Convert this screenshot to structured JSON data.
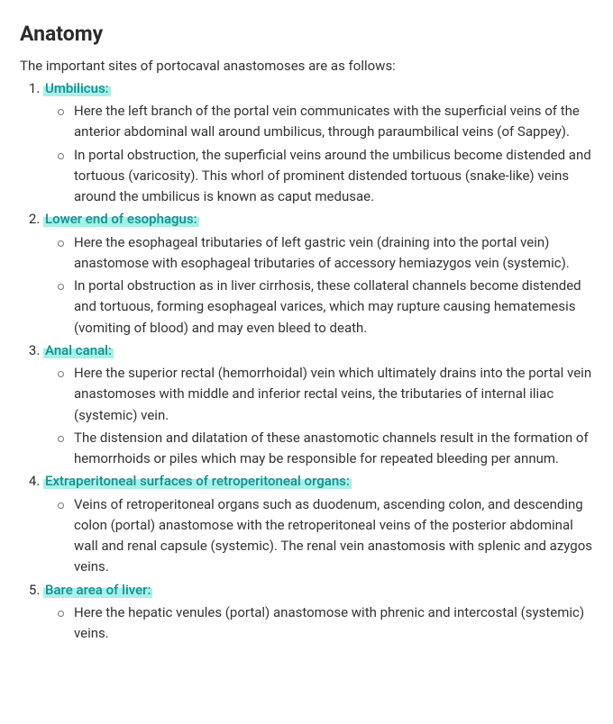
{
  "title": "Anatomy",
  "intro": "The important sites of portocaval anastomoses are as follows:",
  "highlight_bg": "#a8f0e8",
  "highlight_color": "#158f8f",
  "items": [
    {
      "label": "Umbilicus:",
      "bullets": [
        "Here the left branch of the portal vein communicates with the superficial veins of the anterior abdominal wall around umbilicus, through paraumbilical veins (of Sappey).",
        " In portal obstruction, the superficial veins around the umbilicus become distended and tortuous (varicosity). This whorl of prominent distended tortuous (snake-like) veins around the umbilicus is known as caput medusae."
      ]
    },
    {
      "label": "Lower end of esophagus:",
      "bullets": [
        "Here the esophageal tributaries of left gastric vein (draining into the portal vein) anastomose with esophageal tributaries of accessory hemiazygos vein (systemic).",
        "In portal obstruction as in liver cirrhosis, these collateral channels become distended and tortuous, forming esophageal varices, which may rupture causing hematemesis (vomiting of blood) and may even bleed to death."
      ]
    },
    {
      "label": "Anal canal:",
      "bullets": [
        "Here the superior rectal (hemorrhoidal) vein which ultimately drains into the portal vein anastomoses with middle and inferior rectal veins, the tributaries of internal iliac (systemic) vein.",
        "The distension and dilatation of these anastomotic channels result in the formation of hemorrhoids or piles which may be responsible for repeated bleeding per annum."
      ]
    },
    {
      "label": "Extraperitoneal surfaces of retroperitoneal organs:",
      "bullets": [
        "Veins of retroperitoneal organs such as duodenum, ascending colon, and descending colon (portal) anastomose with the retroperitoneal veins of the posterior abdominal wall and renal capsule (systemic). The renal vein anastomosis with splenic and azygos veins."
      ]
    },
    {
      "label": "Bare area of liver:",
      "bullets": [
        "Here the hepatic venules (portal) anastomose with phrenic and intercostal (systemic) veins."
      ]
    }
  ]
}
